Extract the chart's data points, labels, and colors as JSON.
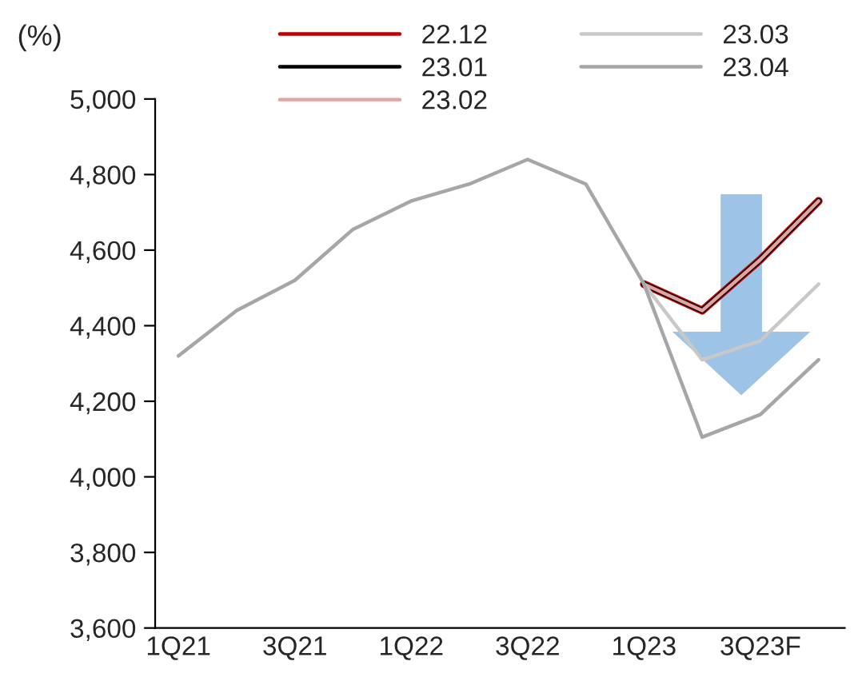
{
  "chart_data": {
    "type": "line",
    "ylabel": "(%)",
    "categories": [
      "1Q21",
      null,
      "3Q21",
      null,
      "1Q22",
      null,
      "3Q22",
      null,
      "1Q23",
      null,
      "3Q23F",
      null
    ],
    "series": [
      {
        "name": "22.12",
        "color": "#c00000",
        "values": [
          null,
          null,
          null,
          null,
          null,
          null,
          null,
          null,
          4510,
          4440,
          4575,
          4730
        ]
      },
      {
        "name": "23.01",
        "color": "#000000",
        "values": [
          null,
          null,
          null,
          null,
          null,
          null,
          null,
          null,
          4510,
          4440,
          4575,
          4730
        ]
      },
      {
        "name": "23.02",
        "color": "#e6a0a0",
        "values": [
          null,
          null,
          null,
          null,
          null,
          null,
          null,
          null,
          4510,
          4440,
          4575,
          4730
        ]
      },
      {
        "name": "23.03",
        "color": "#c8c8c8",
        "values": [
          null,
          null,
          null,
          null,
          null,
          null,
          null,
          null,
          4510,
          4310,
          4360,
          4510
        ]
      },
      {
        "name": "23.04",
        "color": "#a6a6a6",
        "values": [
          4320,
          4440,
          4520,
          4655,
          4730,
          4775,
          4840,
          4775,
          4510,
          4105,
          4165,
          4310
        ]
      }
    ],
    "ylim": [
      3600,
      5000
    ],
    "yticks": [
      {
        "value": 3600,
        "label": "3,600"
      },
      {
        "value": 3800,
        "label": "3,800"
      },
      {
        "value": 4000,
        "label": "4,000"
      },
      {
        "value": 4200,
        "label": "4,200"
      },
      {
        "value": 4400,
        "label": "4,400"
      },
      {
        "value": 4600,
        "label": "4,600"
      },
      {
        "value": 4800,
        "label": "4,800"
      },
      {
        "value": 5000,
        "label": "5,000"
      }
    ],
    "grid": false,
    "legend": "top",
    "marker": "none",
    "line_style": "solid"
  }
}
